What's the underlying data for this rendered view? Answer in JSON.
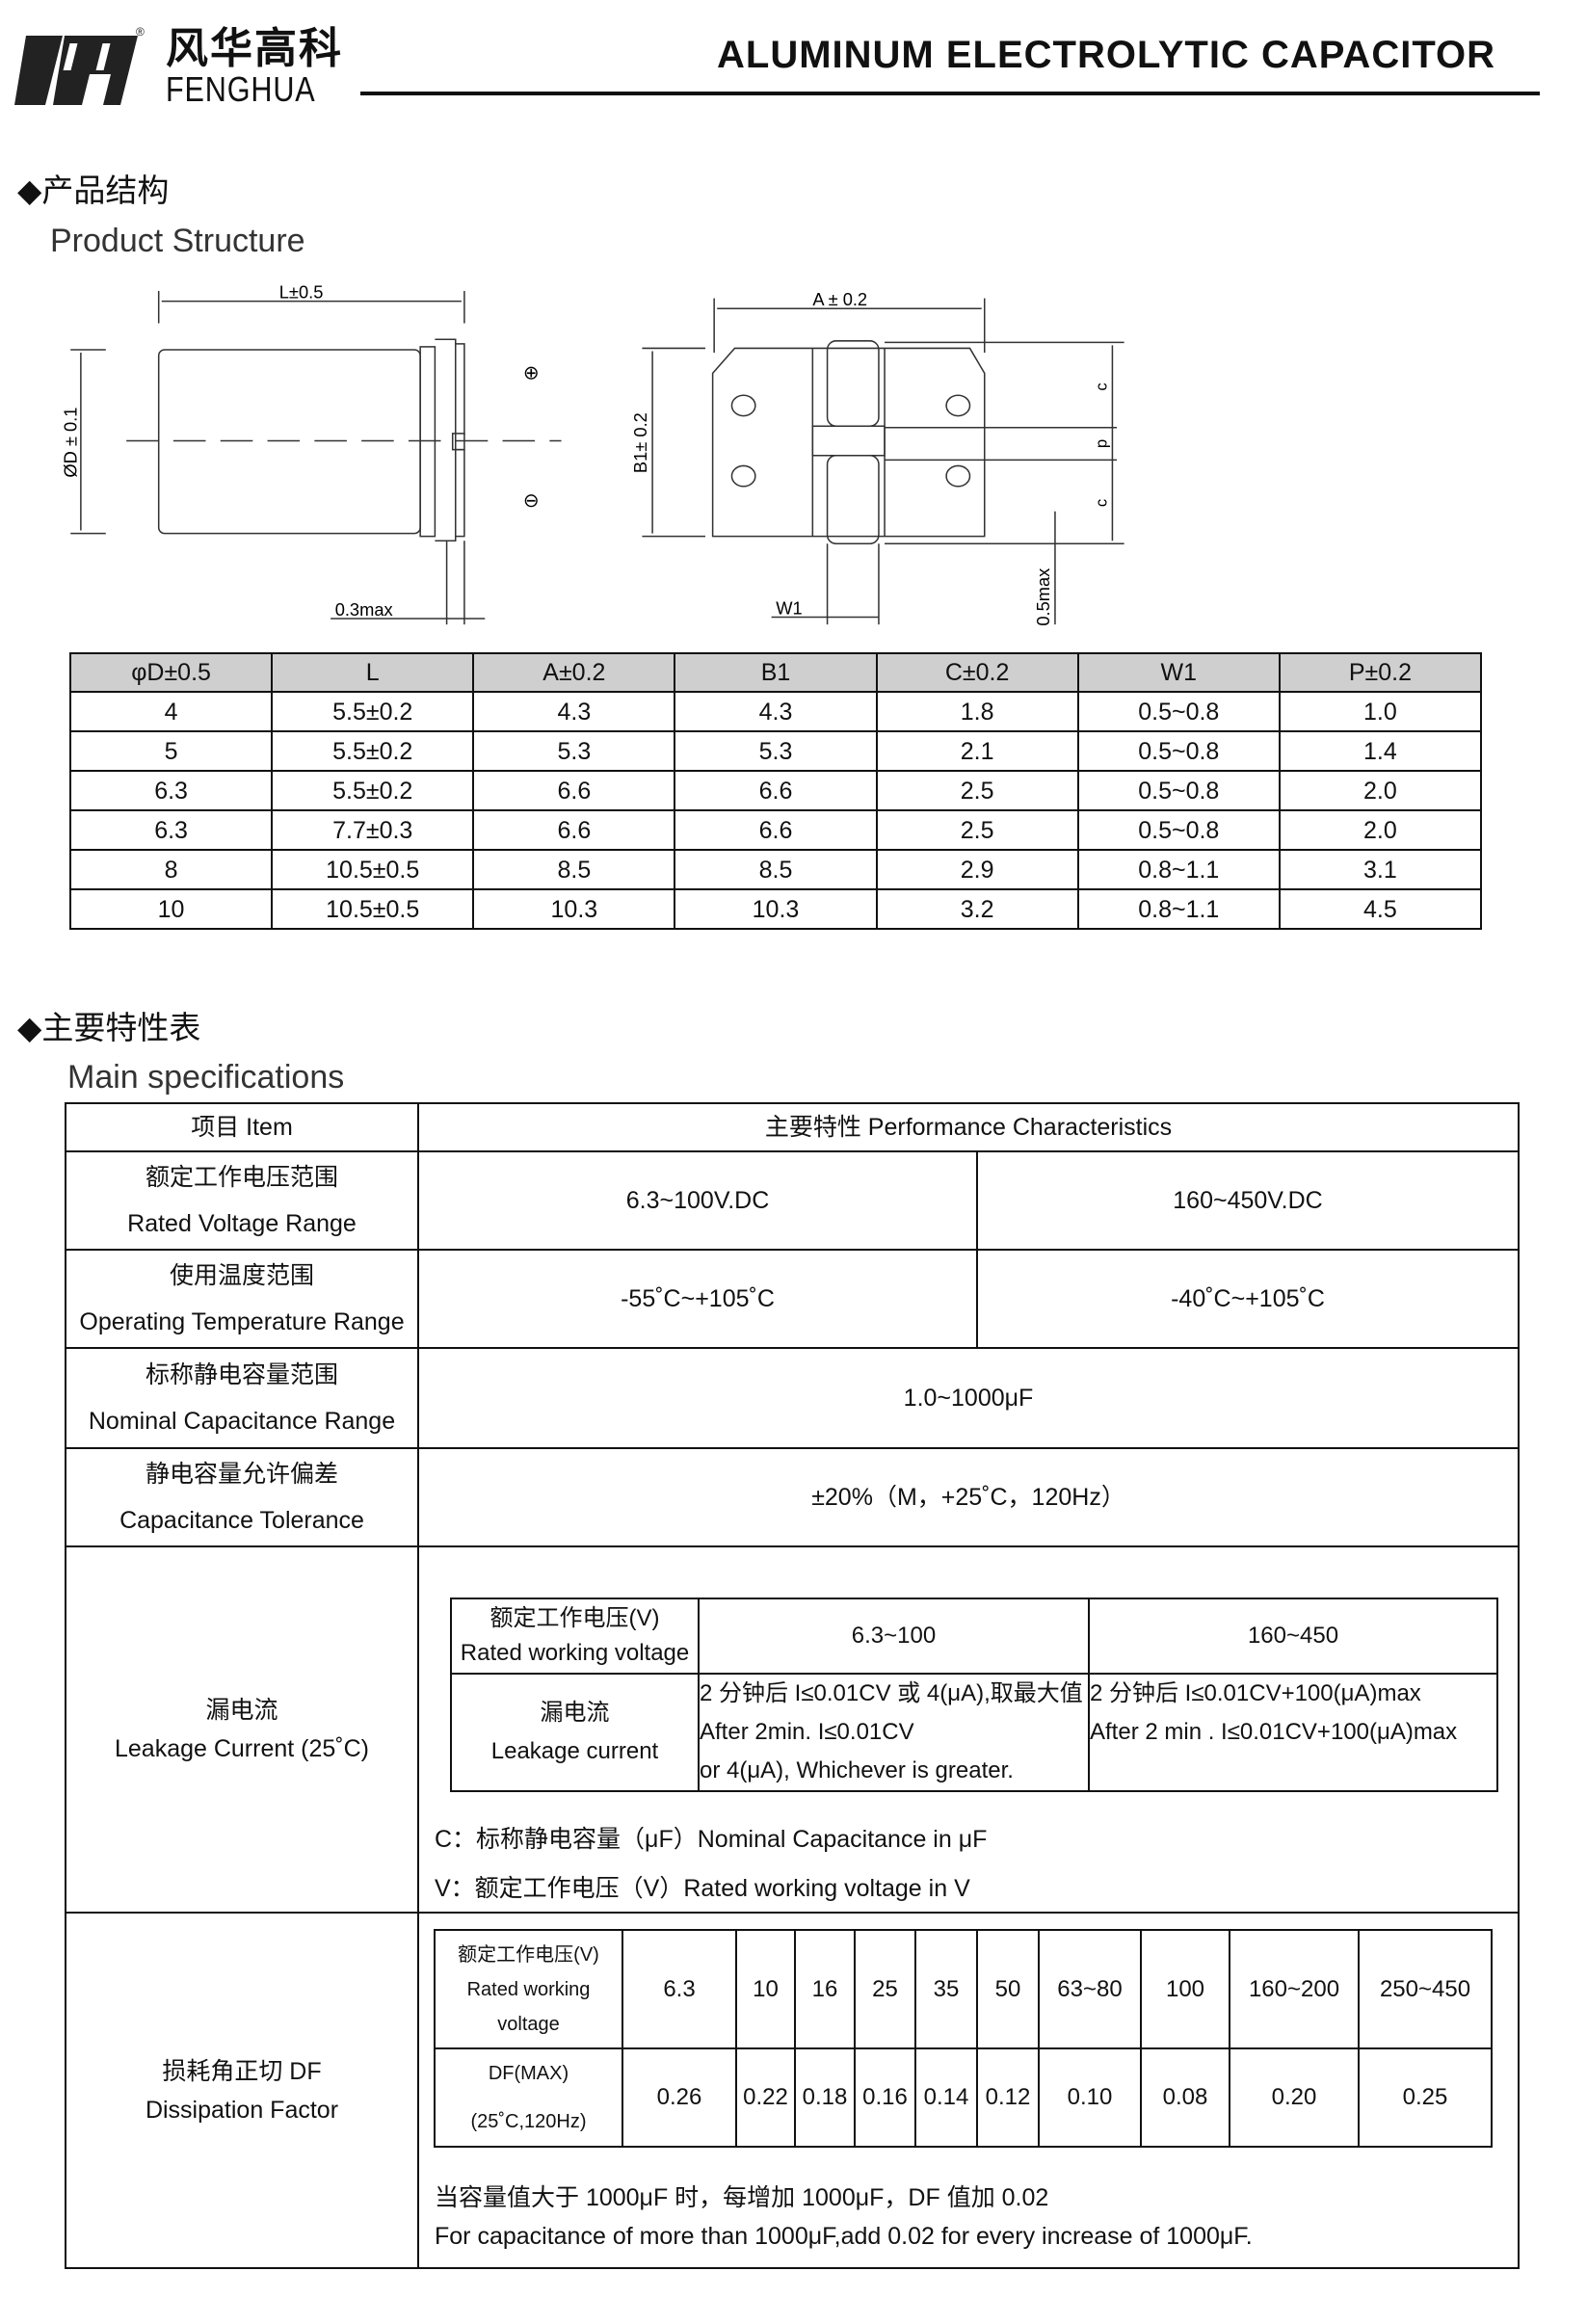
{
  "header": {
    "logo_letters": "FH",
    "company_cn": "风华高科",
    "company_en": "FENGHUA",
    "registered_mark": "®",
    "title": "ALUMINUM ELECTROLYTIC CAPACITOR"
  },
  "structure": {
    "heading_cn": "◆产品结构",
    "heading_en": "Product Structure",
    "diagram_labels": {
      "L": "L±0.5",
      "D": "ØD ± 0.1",
      "lead": "0.3max",
      "A": "A ± 0.2",
      "B1": "B1± 0.2",
      "c": "c",
      "p": "p",
      "W1": "W1",
      "max05": "0.5max",
      "plus": "⊕",
      "minus": "⊖"
    },
    "table": {
      "headers": [
        "φD±0.5",
        "L",
        "A±0.2",
        "B1",
        "C±0.2",
        "W1",
        "P±0.2"
      ],
      "rows": [
        [
          "4",
          "5.5±0.2",
          "4.3",
          "4.3",
          "1.8",
          "0.5~0.8",
          "1.0"
        ],
        [
          "5",
          "5.5±0.2",
          "5.3",
          "5.3",
          "2.1",
          "0.5~0.8",
          "1.4"
        ],
        [
          "6.3",
          "5.5±0.2",
          "6.6",
          "6.6",
          "2.5",
          "0.5~0.8",
          "2.0"
        ],
        [
          "6.3",
          "7.7±0.3",
          "6.6",
          "6.6",
          "2.5",
          "0.5~0.8",
          "2.0"
        ],
        [
          "8",
          "10.5±0.5",
          "8.5",
          "8.5",
          "2.9",
          "0.8~1.1",
          "3.1"
        ],
        [
          "10",
          "10.5±0.5",
          "10.3",
          "10.3",
          "3.2",
          "0.8~1.1",
          "4.5"
        ]
      ]
    }
  },
  "specs": {
    "heading_cn": "◆主要特性表",
    "heading_en": "Main specifications",
    "col_item": "项目 Item",
    "col_perf": "主要特性 Performance Characteristics",
    "rated_voltage": {
      "cn": "额定工作电压范围",
      "en": "Rated Voltage Range",
      "v1": "6.3~100V.DC",
      "v2": "160~450V.DC"
    },
    "temperature": {
      "cn": "使用温度范围",
      "en": "Operating Temperature Range",
      "v1": "-55˚C~+105˚C",
      "v2": "-40˚C~+105˚C"
    },
    "capacitance": {
      "cn": "标称静电容量范围",
      "en": "Nominal Capacitance Range",
      "v": "1.0~1000μF"
    },
    "tolerance": {
      "cn": "静电容量允许偏差",
      "en": "Capacitance Tolerance",
      "v": "±20%（M，+25˚C，120Hz）"
    },
    "leakage": {
      "cn": "漏电流",
      "en": "Leakage Current (25˚C)",
      "voltage_cn": "额定工作电压(V)",
      "voltage_en": "Rated working voltage",
      "range1": "6.3~100",
      "range2": "160~450",
      "current_cn": "漏电流",
      "current_en": "Leakage current",
      "r1_l1": "2 分钟后 I≤0.01CV 或 4(μA),取最大值",
      "r1_l2": "After 2min. I≤0.01CV",
      "r1_l3": "or 4(μA), Whichever is greater.",
      "r2_l1": "2 分钟后 I≤0.01CV+100(μA)max",
      "r2_l2": "After 2 min . I≤0.01CV+100(μA)max",
      "note_c": "C：标称静电容量（μF）Nominal Capacitance in μF",
      "note_v": "V：额定工作电压（V）Rated working voltage in V"
    },
    "df": {
      "cn": "损耗角正切 DF",
      "en": "Dissipation Factor",
      "voltage_cn": "额定工作电压(V)",
      "voltage_en1": "Rated working",
      "voltage_en2": "voltage",
      "df_l1": "DF(MAX)",
      "df_l2": "(25˚C,120Hz)",
      "voltages": [
        "6.3",
        "10",
        "16",
        "25",
        "35",
        "50",
        "63~80",
        "100",
        "160~200",
        "250~450"
      ],
      "values": [
        "0.26",
        "0.22",
        "0.18",
        "0.16",
        "0.14",
        "0.12",
        "0.10",
        "0.08",
        "0.20",
        "0.25"
      ],
      "note_cn": "当容量值大于 1000μF 时，每增加 1000μF，DF 值加 0.02",
      "note_en": "For capacitance of more than 1000μF,add 0.02 for every increase of 1000μF."
    }
  }
}
